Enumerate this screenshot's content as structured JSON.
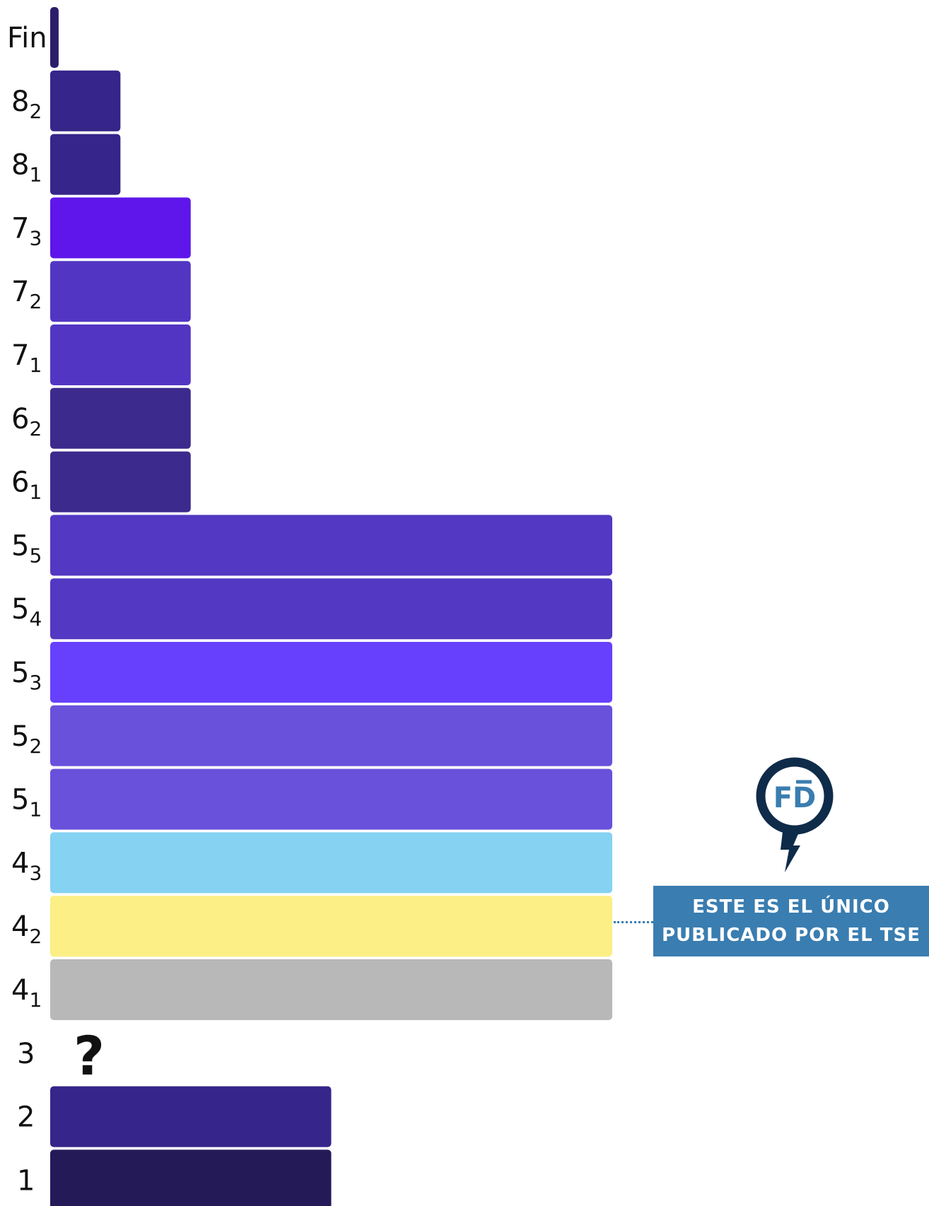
{
  "chart_data": {
    "type": "bar",
    "orientation": "horizontal",
    "title": "",
    "xlabel": "",
    "ylabel": "",
    "grid": false,
    "categories": [
      {
        "main": "Fin",
        "sub": "",
        "value": 1.2,
        "color": "#2b1d6b"
      },
      {
        "main": "8",
        "sub": "2",
        "value": 10,
        "color": "#36258a"
      },
      {
        "main": "8",
        "sub": "1",
        "value": 10,
        "color": "#36258a"
      },
      {
        "main": "7",
        "sub": "3",
        "value": 20,
        "color": "#5e16ea"
      },
      {
        "main": "7",
        "sub": "2",
        "value": 20,
        "color": "#5236c3"
      },
      {
        "main": "7",
        "sub": "1",
        "value": 20,
        "color": "#5236c3"
      },
      {
        "main": "6",
        "sub": "2",
        "value": 20,
        "color": "#3c2a8d"
      },
      {
        "main": "6",
        "sub": "1",
        "value": 20,
        "color": "#3c2a8d"
      },
      {
        "main": "5",
        "sub": "5",
        "value": 80,
        "color": "#5238c2"
      },
      {
        "main": "5",
        "sub": "4",
        "value": 80,
        "color": "#5238c2"
      },
      {
        "main": "5",
        "sub": "3",
        "value": 80,
        "color": "#6640fd"
      },
      {
        "main": "5",
        "sub": "2",
        "value": 80,
        "color": "#6951db"
      },
      {
        "main": "5",
        "sub": "1",
        "value": 80,
        "color": "#6951db"
      },
      {
        "main": "4",
        "sub": "3",
        "value": 80,
        "color": "#85d2f2"
      },
      {
        "main": "4",
        "sub": "2",
        "value": 80,
        "color": "#fbef85"
      },
      {
        "main": "4",
        "sub": "1",
        "value": 80,
        "color": "#b8b8b8"
      },
      {
        "main": "3",
        "sub": "",
        "value": null,
        "marker": "?",
        "color": "#111111"
      },
      {
        "main": "2",
        "sub": "",
        "value": 40,
        "color": "#36258a"
      },
      {
        "main": "1",
        "sub": "",
        "value": 40,
        "color": "#241a58"
      }
    ],
    "xlim": [
      0,
      80
    ]
  },
  "callout": {
    "line1": "ESTE ES EL ÚNICO",
    "line2": "PUBLICADO POR EL TSE",
    "target_category": "4_2",
    "color": "#3a7db0"
  },
  "logo": {
    "text": "FD",
    "icon": "fd-logo-pin-icon",
    "ring_color": "#0f2b4a",
    "text_color": "#3a7db0"
  }
}
